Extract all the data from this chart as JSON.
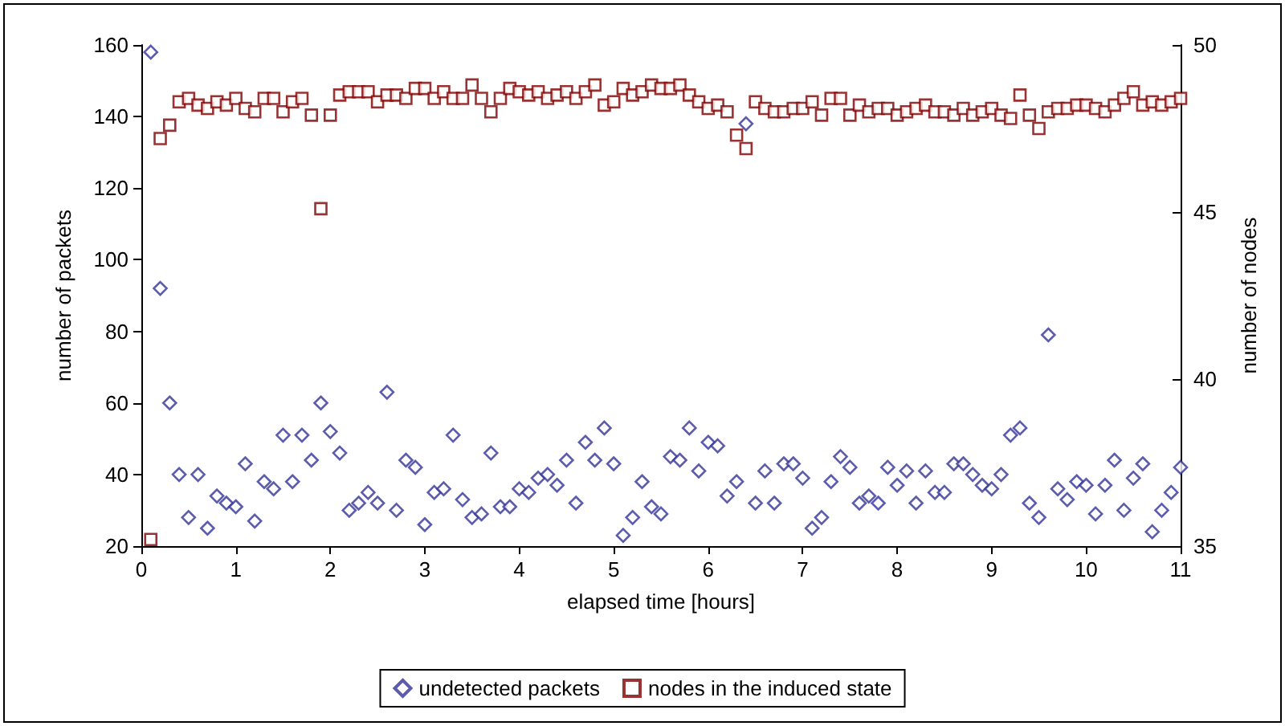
{
  "chart_data": {
    "type": "scatter",
    "xlabel": "elapsed time [hours]",
    "ylabel": "number of packets",
    "y2label": "number of nodes",
    "x": [
      0.1,
      0.2,
      0.3,
      0.4,
      0.5,
      0.6,
      0.7,
      0.8,
      0.9,
      1.0,
      1.1,
      1.2,
      1.3,
      1.4,
      1.5,
      1.6,
      1.7,
      1.8,
      1.9,
      2.0,
      2.1,
      2.2,
      2.3,
      2.4,
      2.5,
      2.6,
      2.7,
      2.8,
      2.9,
      3.0,
      3.1,
      3.2,
      3.3,
      3.4,
      3.5,
      3.6,
      3.7,
      3.8,
      3.9,
      4.0,
      4.1,
      4.2,
      4.3,
      4.4,
      4.5,
      4.6,
      4.7,
      4.8,
      4.9,
      5.0,
      5.1,
      5.2,
      5.3,
      5.4,
      5.5,
      5.6,
      5.7,
      5.8,
      5.9,
      6.0,
      6.1,
      6.2,
      6.3,
      6.4,
      6.5,
      6.6,
      6.7,
      6.8,
      6.9,
      7.0,
      7.1,
      7.2,
      7.3,
      7.4,
      7.5,
      7.6,
      7.7,
      7.8,
      7.9,
      8.0,
      8.1,
      8.2,
      8.3,
      8.4,
      8.5,
      8.6,
      8.7,
      8.8,
      8.9,
      9.0,
      9.1,
      9.2,
      9.3,
      9.4,
      9.5,
      9.6,
      9.7,
      9.8,
      9.9,
      10.0,
      10.1,
      10.2,
      10.3,
      10.4,
      10.5,
      10.6,
      10.7,
      10.8,
      10.9,
      11.0
    ],
    "series": [
      {
        "name": "undetected packets",
        "color": "#333399",
        "marker": "diamond",
        "values": [
          158,
          92,
          60,
          40,
          28,
          40,
          25,
          34,
          32,
          31,
          43,
          27,
          38,
          36,
          51,
          38,
          51,
          44,
          60,
          52,
          46,
          30,
          32,
          35,
          32,
          63,
          30,
          44,
          42,
          26,
          35,
          36,
          51,
          33,
          28,
          29,
          46,
          31,
          31,
          36,
          35,
          39,
          40,
          37,
          44,
          32,
          49,
          44,
          53,
          43,
          23,
          28,
          38,
          31,
          29,
          45,
          44,
          53,
          41,
          49,
          48,
          34,
          38,
          138,
          32,
          41,
          32,
          43,
          43,
          39,
          25,
          28,
          38,
          45,
          42,
          32,
          34,
          32,
          42,
          37,
          41,
          32,
          41,
          35,
          35,
          43,
          43,
          40,
          37,
          36,
          40,
          51,
          53,
          32,
          28,
          79,
          36,
          33,
          38,
          37,
          29,
          37,
          44,
          30,
          39,
          43,
          24,
          30,
          35,
          42
        ]
      },
      {
        "name": "nodes in the induced state",
        "color": "#800000",
        "marker": "square",
        "axis": "y2",
        "values": [
          35.2,
          47.2,
          47.6,
          48.3,
          48.4,
          48.2,
          48.1,
          48.3,
          48.2,
          48.4,
          48.1,
          48.0,
          48.4,
          48.4,
          48.0,
          48.3,
          48.4,
          47.9,
          45.1,
          47.9,
          48.5,
          48.6,
          48.6,
          48.6,
          48.3,
          48.5,
          48.5,
          48.4,
          48.7,
          48.7,
          48.4,
          48.6,
          48.4,
          48.4,
          48.8,
          48.4,
          48.0,
          48.4,
          48.7,
          48.6,
          48.5,
          48.6,
          48.4,
          48.5,
          48.6,
          48.4,
          48.6,
          48.8,
          48.2,
          48.3,
          48.7,
          48.5,
          48.6,
          48.8,
          48.7,
          48.7,
          48.8,
          48.5,
          48.3,
          48.1,
          48.2,
          48.0,
          47.3,
          46.9,
          48.3,
          48.1,
          48.0,
          48.0,
          48.1,
          48.1,
          48.3,
          47.9,
          48.4,
          48.4,
          47.9,
          48.2,
          48.0,
          48.1,
          48.1,
          47.9,
          48.0,
          48.1,
          48.2,
          48.0,
          48.0,
          47.9,
          48.1,
          47.9,
          48.0,
          48.1,
          47.9,
          47.8,
          48.5,
          47.9,
          47.5,
          48.0,
          48.1,
          48.1,
          48.2,
          48.2,
          48.1,
          48.0,
          48.2,
          48.4,
          48.6,
          48.2,
          48.3,
          48.2,
          48.3,
          48.4
        ]
      }
    ],
    "xlim": [
      0,
      11
    ],
    "xticks": [
      0,
      1,
      2,
      3,
      4,
      5,
      6,
      7,
      8,
      9,
      10,
      11
    ],
    "ylim": [
      20,
      160
    ],
    "yticks": [
      20,
      40,
      60,
      80,
      100,
      120,
      140,
      160
    ],
    "y2lim": [
      35,
      50
    ],
    "y2ticks": [
      35,
      40,
      45,
      50
    ],
    "grid": false,
    "legend": "bottom"
  }
}
